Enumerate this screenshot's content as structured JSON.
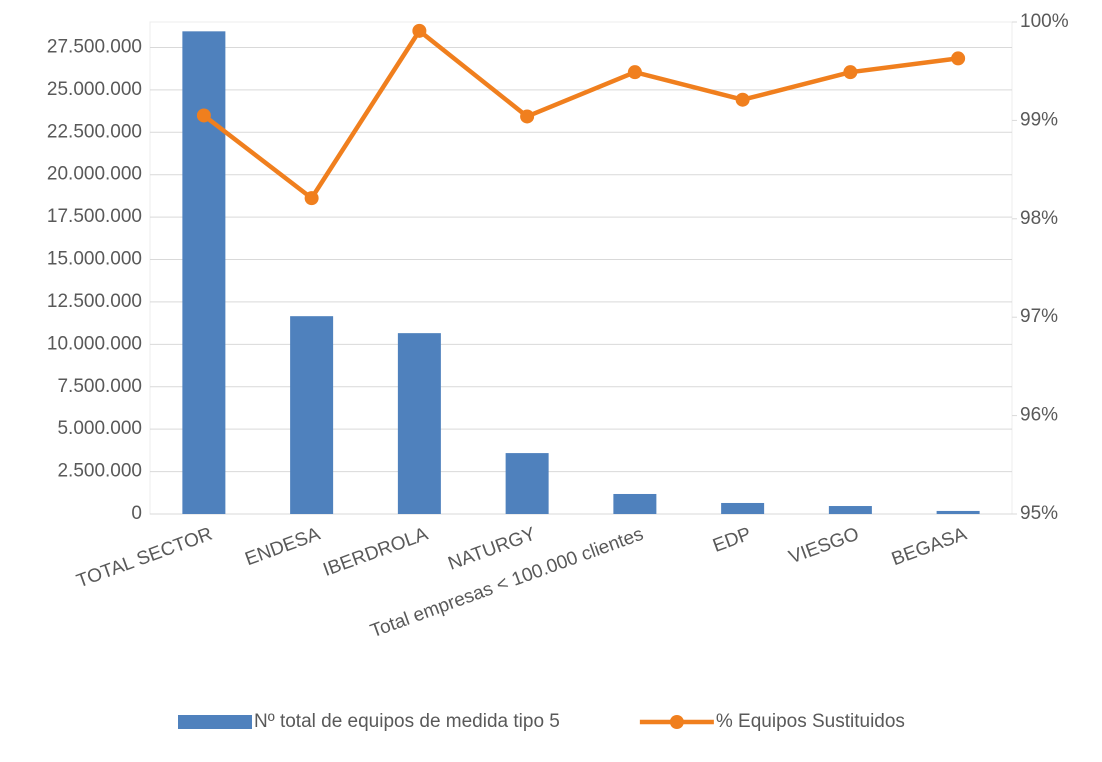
{
  "chart_data": {
    "type": "bar-line",
    "categories": [
      "TOTAL SECTOR",
      "ENDESA",
      "IBERDROLA",
      "NATURGY",
      "Total empresas < 100.000 clientes",
      "EDP",
      "VIESGO",
      "BEGASA"
    ],
    "series": [
      {
        "name": "Nº total de equipos de medida tipo 5",
        "type": "bar",
        "color": "#4f81bd",
        "values": [
          28450000,
          11660000,
          10660000,
          3590000,
          1180000,
          650000,
          470000,
          180000
        ]
      },
      {
        "name": "% Equipos Sustituidos",
        "type": "line",
        "axis": "y2",
        "color": "#f07f1e",
        "values": [
          99.05,
          98.21,
          99.91,
          99.04,
          99.49,
          99.21,
          99.49,
          99.63
        ]
      }
    ],
    "ylim": [
      0,
      29000000
    ],
    "yticks": [
      0,
      {
        "value": 2500000,
        "label": "2.500.000"
      },
      {
        "value": 5000000,
        "label": "5.000.000"
      },
      {
        "value": 7500000,
        "label": "7.500.000"
      },
      {
        "value": 10000000,
        "label": "10.000.000"
      },
      {
        "value": 12500000,
        "label": "12.500.000"
      },
      {
        "value": 15000000,
        "label": "15.000.000"
      },
      {
        "value": 17500000,
        "label": "17.500.000"
      },
      {
        "value": 20000000,
        "label": "20.000.000"
      },
      {
        "value": 22500000,
        "label": "22.500.000"
      },
      {
        "value": 25000000,
        "label": "25.000.000"
      },
      {
        "value": 27500000,
        "label": "27.500.000"
      }
    ],
    "y2lim": [
      95,
      100
    ],
    "y2ticks": [
      {
        "value": 95,
        "label": "95%"
      },
      {
        "value": 96,
        "label": "96%"
      },
      {
        "value": 97,
        "label": "97%"
      },
      {
        "value": 98,
        "label": "98%"
      },
      {
        "value": 99,
        "label": "99%"
      },
      {
        "value": 100,
        "label": "100%"
      }
    ],
    "grid": true,
    "legend": "bottom"
  }
}
